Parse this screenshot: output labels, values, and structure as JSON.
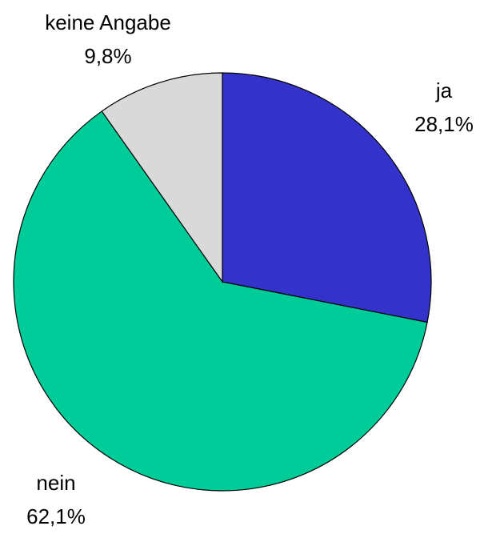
{
  "chart_data": {
    "type": "pie",
    "categories": [
      "ja",
      "nein",
      "keine Angabe"
    ],
    "values": [
      28.1,
      62.1,
      9.8
    ],
    "value_labels": [
      "28,1%",
      "62,1%",
      "9,8%"
    ],
    "colors": [
      "#3333cc",
      "#00cc99",
      "#d9d9d9"
    ]
  }
}
